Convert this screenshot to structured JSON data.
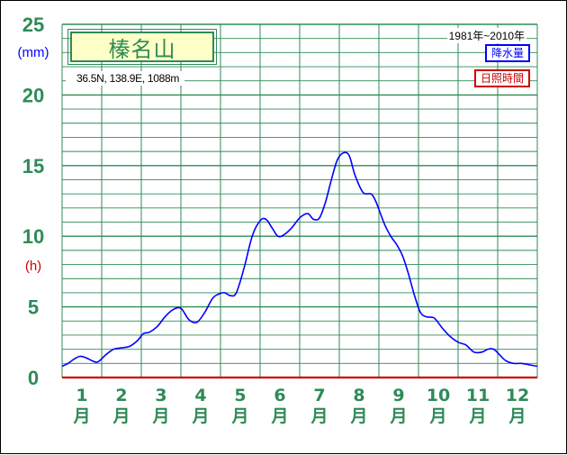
{
  "chart_data": {
    "type": "line",
    "title": "榛名山",
    "location": "36.5N, 138.9E, 1088m",
    "period": "1981年~2010年",
    "legend": {
      "precip": "降水量",
      "sunshine": "日照時間"
    },
    "y_unit_primary": "(mm)",
    "y_unit_secondary": "(h)",
    "y_ticks": [
      "0",
      "5",
      "10",
      "15",
      "20",
      "25"
    ],
    "ylim": [
      0,
      25
    ],
    "categories": [
      "1",
      "2",
      "3",
      "4",
      "5",
      "6",
      "7",
      "8",
      "9",
      "10",
      "11",
      "12"
    ],
    "category_suffix": "月",
    "grid": true,
    "colors": {
      "precip": "#0000ff",
      "sunshine": "#cc0000",
      "grid": "#2e8b57",
      "labels": "#2e8b57"
    },
    "series": [
      {
        "name": "降水量",
        "x": [
          0.0,
          0.15,
          0.3,
          0.45,
          0.6,
          0.75,
          0.9,
          1.1,
          1.3,
          1.5,
          1.7,
          1.9,
          2.05,
          2.2,
          2.4,
          2.6,
          2.8,
          3.0,
          3.2,
          3.4,
          3.6,
          3.8,
          3.95,
          4.1,
          4.25,
          4.4,
          4.6,
          4.8,
          5.0,
          5.15,
          5.3,
          5.45,
          5.6,
          5.8,
          6.0,
          6.2,
          6.35,
          6.5,
          6.65,
          6.8,
          6.95,
          7.1,
          7.25,
          7.4,
          7.6,
          7.8,
          7.9,
          8.0,
          8.15,
          8.3,
          8.45,
          8.6,
          8.75,
          8.9,
          9.05,
          9.2,
          9.4,
          9.6,
          9.8,
          10.0,
          10.2,
          10.4,
          10.6,
          10.75,
          10.9,
          11.05,
          11.2,
          11.4,
          11.6,
          11.8,
          12.0
        ],
        "values": [
          0.8,
          1.0,
          1.3,
          1.5,
          1.4,
          1.2,
          1.1,
          1.6,
          2.0,
          2.1,
          2.2,
          2.6,
          3.1,
          3.2,
          3.6,
          4.3,
          4.8,
          4.9,
          4.1,
          3.9,
          4.6,
          5.6,
          5.9,
          6.0,
          5.8,
          6.0,
          7.8,
          10.0,
          11.1,
          11.2,
          10.6,
          10.0,
          10.1,
          10.6,
          11.3,
          11.6,
          11.2,
          11.3,
          12.4,
          14.0,
          15.4,
          15.9,
          15.7,
          14.3,
          13.1,
          13.0,
          12.6,
          11.9,
          10.8,
          10.0,
          9.4,
          8.6,
          7.3,
          5.8,
          4.6,
          4.3,
          4.2,
          3.5,
          2.9,
          2.5,
          2.3,
          1.8,
          1.8,
          2.0,
          2.0,
          1.6,
          1.2,
          1.0,
          1.0,
          0.9,
          0.8
        ]
      },
      {
        "name": "日照時間",
        "x": [
          0,
          12
        ],
        "values": [
          0,
          0
        ]
      }
    ]
  }
}
